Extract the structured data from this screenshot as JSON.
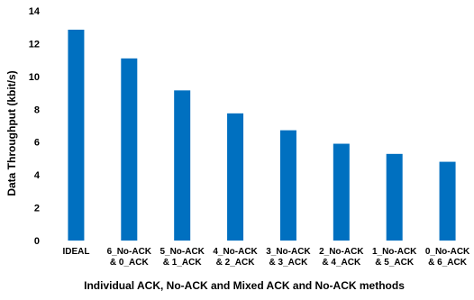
{
  "chart_data": {
    "type": "bar",
    "categories": [
      [
        "IDEAL"
      ],
      [
        "6_No-ACK",
        "& 0_ACK"
      ],
      [
        "5_No-ACK",
        "& 1_ACK"
      ],
      [
        "4_No-ACK",
        "& 2_ACK"
      ],
      [
        "3_No-ACK",
        "& 3_ACK"
      ],
      [
        "2_No-ACK",
        "& 4_ACK"
      ],
      [
        "1_No-ACK",
        "& 5_ACK"
      ],
      [
        "0_No-ACK",
        "& 6_ACK"
      ]
    ],
    "values": [
      12.85,
      11.1,
      9.15,
      7.75,
      6.72,
      5.9,
      5.28,
      4.8
    ],
    "ylim": [
      0,
      14
    ],
    "yticks": [
      0,
      2,
      4,
      6,
      8,
      10,
      12,
      14
    ],
    "ylabel": "Data Throughput (kbit/s)",
    "xlabel": "Individual ACK, No-ACK and Mixed ACK and No-ACK methods",
    "bar_color": "#0070C0",
    "grid": false,
    "legend": "none"
  }
}
